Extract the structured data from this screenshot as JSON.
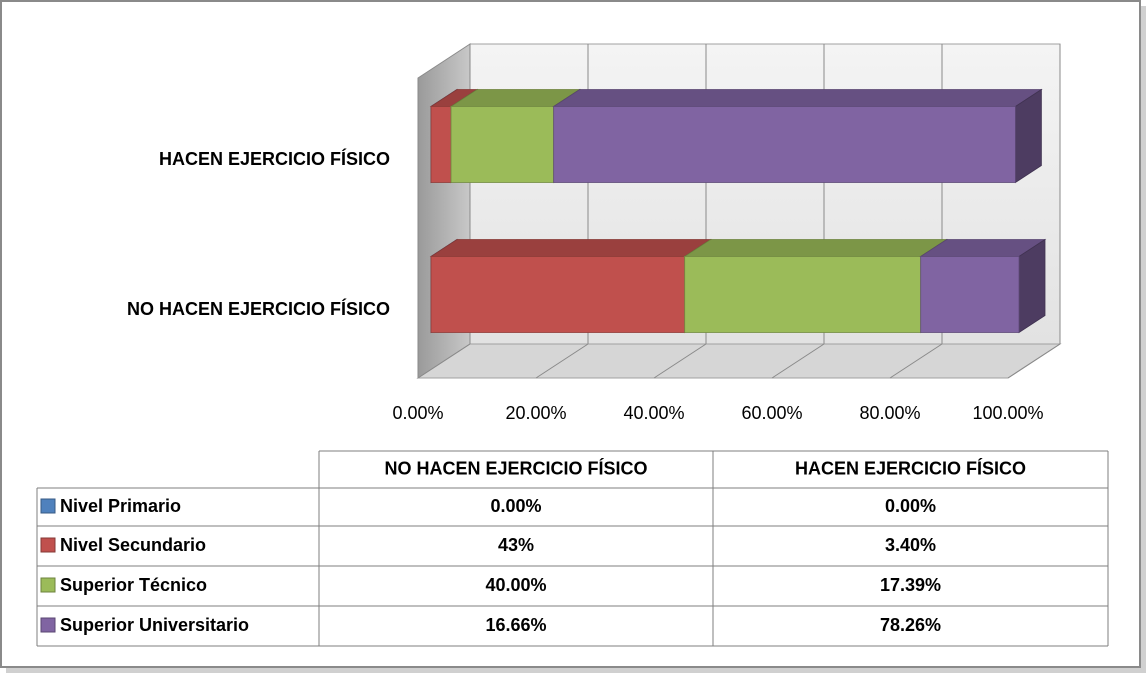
{
  "chart_data": {
    "type": "bar",
    "orientation": "horizontal",
    "stacked": true,
    "categories": [
      "NO HACEN EJERCICIO FÍSICO",
      "HACEN EJERCICIO FÍSICO"
    ],
    "series": [
      {
        "name": "Nivel Primario",
        "color": "#4f81bd",
        "values": [
          0,
          0
        ],
        "value_labels": [
          "0.00%",
          "0.00%"
        ]
      },
      {
        "name": "Nivel Secundario",
        "color": "#c0504d",
        "values": [
          43,
          3.4
        ],
        "value_labels": [
          "43%",
          "3.40%"
        ]
      },
      {
        "name": "Superior Técnico",
        "color": "#9bbb59",
        "values": [
          40,
          17.39
        ],
        "value_labels": [
          "40.00%",
          "17.39%"
        ]
      },
      {
        "name": "Superior Universitario",
        "color": "#8064a2",
        "values": [
          16.66,
          78.26
        ],
        "value_labels": [
          "16.66%",
          "78.26%"
        ]
      }
    ],
    "xlim": [
      0,
      100
    ],
    "xticks": [
      {
        "value": 0,
        "label": "0.00%"
      },
      {
        "value": 20,
        "label": "20.00%"
      },
      {
        "value": 40,
        "label": "40.00%"
      },
      {
        "value": 60,
        "label": "60.00%"
      },
      {
        "value": 80,
        "label": "80.00%"
      },
      {
        "value": 100,
        "label": "100.00%"
      }
    ],
    "grid": true,
    "data_table": true
  }
}
